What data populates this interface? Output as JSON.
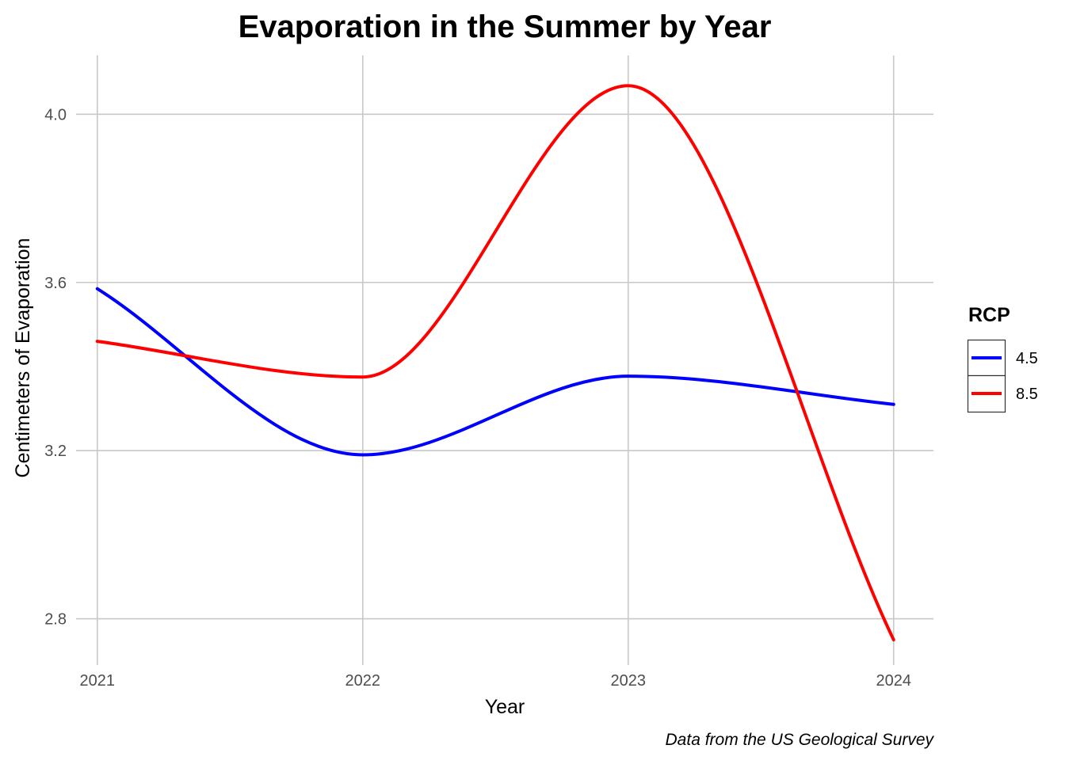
{
  "chart_data": {
    "type": "line",
    "title": "Evaporation in the Summer by Year",
    "xlabel": "Year",
    "ylabel": "Centimeters of Evaporation",
    "caption": "Data from the US Geological Survey",
    "x": [
      2021,
      2022,
      2023,
      2024
    ],
    "x_ticks": [
      "2021",
      "2022",
      "2023",
      "2024"
    ],
    "y_ticks": [
      "2.8",
      "3.2",
      "3.6",
      "4.0"
    ],
    "y_tick_values": [
      2.8,
      3.2,
      3.6,
      4.0
    ],
    "xlim": [
      2020.92,
      2024.15
    ],
    "ylim": [
      2.69,
      4.14
    ],
    "grid": true,
    "smoothed": true,
    "legend": {
      "title": "RCP",
      "placement": "right"
    },
    "series": [
      {
        "name": "4.5",
        "color": "#0000ff",
        "values": [
          3.585,
          3.19,
          3.377,
          3.31
        ]
      },
      {
        "name": "8.5",
        "color": "#ff0000",
        "values": [
          3.46,
          3.375,
          4.068,
          2.75
        ]
      }
    ]
  }
}
